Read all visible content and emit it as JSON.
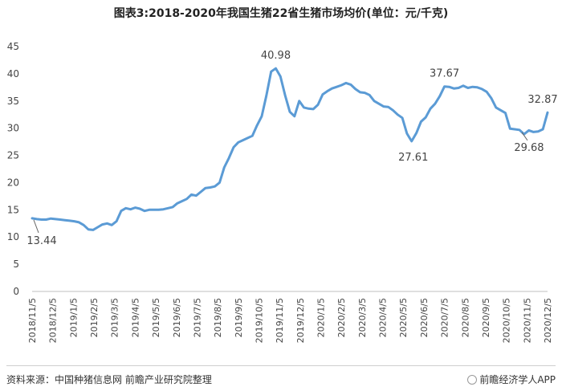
{
  "chart_data": {
    "type": "line",
    "title": "图表3:2018-2020年我国生猪22省生猪市场均价(单位：元/千克)",
    "xlabel": "",
    "ylabel": "",
    "ylim": [
      0,
      45
    ],
    "yticks": [
      0,
      5,
      10,
      15,
      20,
      25,
      30,
      35,
      40,
      45
    ],
    "grid": false,
    "line_color": "#5b9bd5",
    "x_tick_labels": [
      "2018/11/5",
      "2018/12/5",
      "2019/1/5",
      "2019/2/5",
      "2019/3/5",
      "2019/4/5",
      "2019/5/5",
      "2019/6/5",
      "2019/7/5",
      "2019/8/5",
      "2019/9/5",
      "2019/10/5",
      "2019/11/5",
      "2019/12/5",
      "2020/1/5",
      "2020/2/5",
      "2020/3/5",
      "2020/4/5",
      "2020/5/5",
      "2020/6/5",
      "2020/7/5",
      "2020/8/5",
      "2020/9/5",
      "2020/10/5",
      "2020/11/5",
      "2020/12/5"
    ],
    "series": [
      {
        "values": [
          13.44,
          13.3,
          13.2,
          13.2,
          13.4,
          13.3,
          13.2,
          13.1,
          13.0,
          12.9,
          12.7,
          12.2,
          11.4,
          11.3,
          11.8,
          12.3,
          12.5,
          12.2,
          12.9,
          14.8,
          15.3,
          15.1,
          15.4,
          15.2,
          14.8,
          15.0,
          15.0,
          15.0,
          15.1,
          15.3,
          15.5,
          16.2,
          16.6,
          17.0,
          17.8,
          17.6,
          18.3,
          19.0,
          19.1,
          19.3,
          20.0,
          22.8,
          24.5,
          26.5,
          27.4,
          27.8,
          28.2,
          28.6,
          30.5,
          32.2,
          36.0,
          40.4,
          40.98,
          39.5,
          36.0,
          33.0,
          32.2,
          35.0,
          33.8,
          33.6,
          33.5,
          34.3,
          36.2,
          36.8,
          37.3,
          37.6,
          37.9,
          38.3,
          38.0,
          37.2,
          36.6,
          36.5,
          36.1,
          35.0,
          34.5,
          34.0,
          33.9,
          33.3,
          32.5,
          31.9,
          29.0,
          27.61,
          29.1,
          31.2,
          32.0,
          33.6,
          34.5,
          35.9,
          37.67,
          37.6,
          37.3,
          37.4,
          37.8,
          37.4,
          37.6,
          37.5,
          37.2,
          36.7,
          35.5,
          33.8,
          33.3,
          32.8,
          29.9,
          29.8,
          29.68,
          28.9,
          29.6,
          29.3,
          29.4,
          29.8,
          32.87
        ]
      }
    ],
    "annotations": [
      {
        "text": "13.44",
        "x_index": 0,
        "value": 13.44,
        "position": "below"
      },
      {
        "text": "40.98",
        "x_index": 52,
        "value": 40.98,
        "position": "above"
      },
      {
        "text": "27.61",
        "x_index": 81,
        "value": 27.61,
        "position": "below"
      },
      {
        "text": "37.67",
        "x_index": 88,
        "value": 37.67,
        "position": "above"
      },
      {
        "text": "29.68",
        "x_index": 104,
        "value": 29.68,
        "position": "below"
      },
      {
        "text": "32.87",
        "x_index": 110,
        "value": 32.87,
        "position": "above"
      }
    ]
  },
  "footer": {
    "source": "资料来源：中国种猪信息网 前瞻产业研究院整理",
    "brand": "前瞻经济学人APP"
  }
}
